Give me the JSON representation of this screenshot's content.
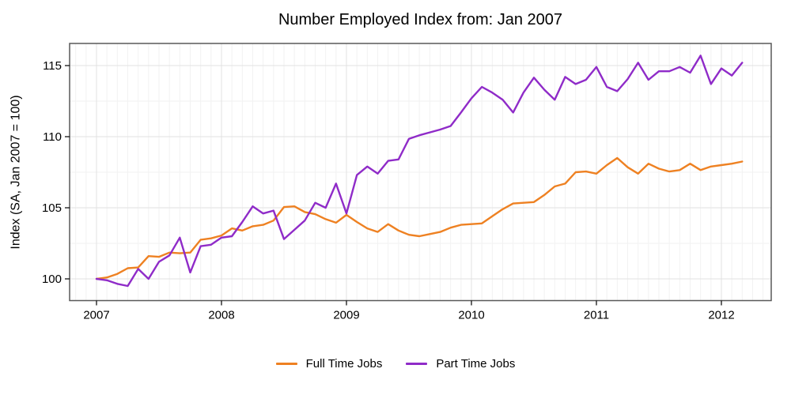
{
  "title": "Number Employed Index from: Jan 2007",
  "y_axis": {
    "label": "Index (SA, Jan 2007 = 100)",
    "tick_labels": [
      "100",
      "105",
      "110",
      "115"
    ],
    "ticks": [
      100,
      105,
      110,
      115
    ]
  },
  "x_axis": {
    "tick_labels": [
      "2007",
      "2008",
      "2009",
      "2010",
      "2011",
      "2012"
    ],
    "ticks": [
      2007,
      2008,
      2009,
      2010,
      2011,
      2012
    ]
  },
  "legend": {
    "position": "bottom",
    "items": [
      {
        "label": "Full Time Jobs",
        "color": "#EE8122"
      },
      {
        "label": "Part Time Jobs",
        "color": "#8F2BC8"
      }
    ]
  },
  "chart_data": {
    "type": "line",
    "title": "Number Employed Index from: Jan 2007",
    "xlabel": "",
    "ylabel": "Index (SA, Jan 2007 = 100)",
    "x_start": "2007-01",
    "x_end": "2012-03",
    "frequency": "monthly",
    "xlim": [
      2006.79,
      2012.4
    ],
    "ylim": [
      98.5,
      116.6
    ],
    "grid": {
      "major_y": [
        100,
        105,
        110,
        115
      ],
      "minor_y": [
        102.5,
        107.5,
        112.5
      ],
      "major_x": [
        2007,
        2008,
        2009,
        2010,
        2011,
        2012
      ],
      "minor_x": "monthly"
    },
    "series": [
      {
        "name": "Full Time Jobs",
        "color": "#EE8122",
        "values": [
          100.0,
          100.1,
          100.35,
          100.75,
          100.8,
          101.6,
          101.55,
          101.85,
          101.8,
          101.85,
          102.75,
          102.85,
          103.05,
          103.55,
          103.4,
          103.7,
          103.8,
          104.1,
          105.05,
          105.1,
          104.7,
          104.55,
          104.2,
          103.95,
          104.5,
          104.0,
          103.55,
          103.3,
          103.85,
          103.4,
          103.1,
          103.0,
          103.15,
          103.3,
          103.6,
          103.8,
          103.85,
          103.9,
          104.4,
          104.9,
          105.3,
          105.35,
          105.4,
          105.9,
          106.5,
          106.7,
          107.5,
          107.55,
          107.4,
          108.0,
          108.5,
          107.85,
          107.4,
          108.1,
          107.75,
          107.55,
          107.65,
          108.1,
          107.65,
          107.9,
          108.0,
          108.1,
          108.25
        ]
      },
      {
        "name": "Part Time Jobs",
        "color": "#8F2BC8",
        "values": [
          100.0,
          99.9,
          99.65,
          99.5,
          100.7,
          100.0,
          101.2,
          101.65,
          102.9,
          100.45,
          102.3,
          102.4,
          102.9,
          103.0,
          104.0,
          105.1,
          104.6,
          104.8,
          102.8,
          103.45,
          104.1,
          105.35,
          105.0,
          106.7,
          104.6,
          107.3,
          107.9,
          107.4,
          108.3,
          108.4,
          109.85,
          110.1,
          110.3,
          110.5,
          110.75,
          111.7,
          112.7,
          113.5,
          113.1,
          112.6,
          111.7,
          113.1,
          114.15,
          113.3,
          112.6,
          114.2,
          113.7,
          114.0,
          114.9,
          113.5,
          113.2,
          114.05,
          115.2,
          114.0,
          114.6,
          114.6,
          114.9,
          114.5,
          115.7,
          113.7,
          114.8,
          114.3,
          115.2
        ]
      }
    ]
  }
}
